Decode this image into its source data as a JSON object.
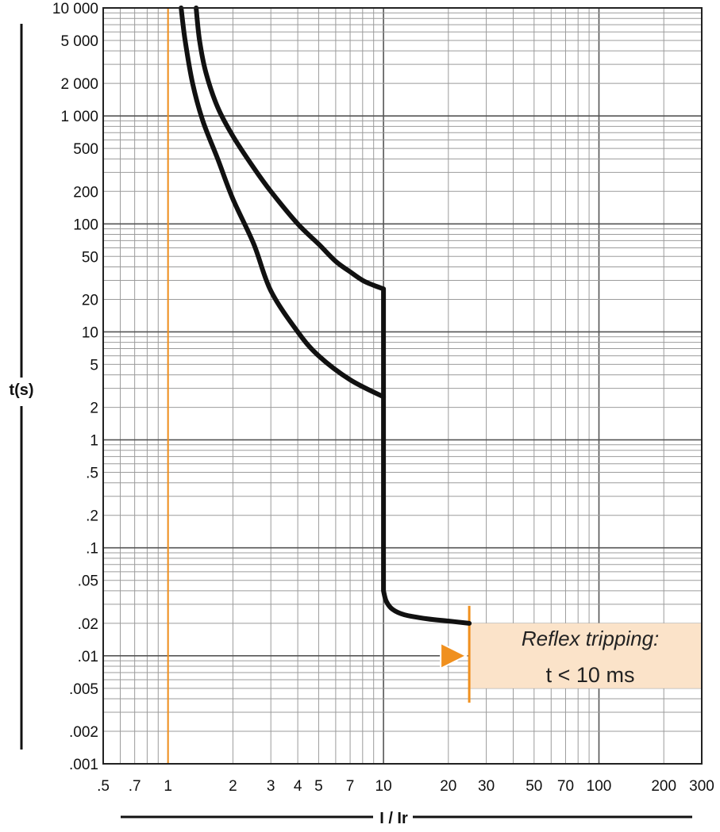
{
  "chart_data": {
    "type": "line",
    "title": "",
    "xlabel": "I / Ir",
    "ylabel": "t(s)",
    "x_scale": "log",
    "y_scale": "log",
    "xlim": [
      0.5,
      300
    ],
    "ylim": [
      0.001,
      10000
    ],
    "grid": true,
    "x_ticks": [
      0.5,
      0.7,
      1,
      2,
      3,
      4,
      5,
      7,
      10,
      20,
      30,
      50,
      70,
      100,
      200,
      300
    ],
    "x_tick_labels": [
      ".5",
      ".7",
      "1",
      "2",
      "3",
      "4",
      "5",
      "7",
      "10",
      "20",
      "30",
      "50",
      "70",
      "100",
      "200",
      "300"
    ],
    "y_ticks": [
      0.001,
      0.002,
      0.005,
      0.01,
      0.02,
      0.05,
      0.1,
      0.2,
      0.5,
      1,
      2,
      5,
      10,
      20,
      50,
      100,
      200,
      500,
      1000,
      2000,
      5000,
      10000
    ],
    "y_tick_labels": [
      ".001",
      ".002",
      ".005",
      ".01",
      ".02",
      ".05",
      ".1",
      ".2",
      ".5",
      "1",
      "2",
      "5",
      "10",
      "20",
      "50",
      "100",
      "200",
      "500",
      "1 000",
      "2 000",
      "5 000",
      "10 000"
    ],
    "series": [
      {
        "color": "#111111",
        "points": [
          [
            1.35,
            10000
          ],
          [
            1.4,
            5000
          ],
          [
            1.5,
            2500
          ],
          [
            1.7,
            1200
          ],
          [
            2,
            650
          ],
          [
            2.5,
            330
          ],
          [
            3,
            200
          ],
          [
            4,
            100
          ],
          [
            5,
            65
          ],
          [
            6,
            45
          ],
          [
            7,
            36
          ],
          [
            8,
            30
          ],
          [
            9,
            27
          ],
          [
            10,
            25
          ],
          [
            10,
            0.04
          ],
          [
            10.3,
            0.032
          ],
          [
            11,
            0.027
          ],
          [
            12.5,
            0.024
          ],
          [
            16,
            0.022
          ],
          [
            20,
            0.021
          ],
          [
            25,
            0.02
          ]
        ]
      },
      {
        "color": "#111111",
        "points": [
          [
            1.15,
            10000
          ],
          [
            1.2,
            5000
          ],
          [
            1.3,
            2000
          ],
          [
            1.45,
            900
          ],
          [
            1.7,
            400
          ],
          [
            2,
            170
          ],
          [
            2.5,
            65
          ],
          [
            3,
            24
          ],
          [
            4,
            10
          ],
          [
            5,
            6
          ],
          [
            7,
            3.6
          ],
          [
            10,
            2.5
          ]
        ]
      }
    ],
    "reference_lines": [
      {
        "orientation": "vertical",
        "x": 1,
        "color": "#f0901e"
      }
    ],
    "annotations": {
      "title": "Reflex tripping",
      "colon": ":",
      "value": "t < 10 ms",
      "x_start": 25,
      "x_end": 300,
      "y_low": 0.005,
      "y_high": 0.02,
      "marker_y": 0.01,
      "box_color": "#fbe3c9",
      "accent_color": "#f0901e"
    }
  }
}
